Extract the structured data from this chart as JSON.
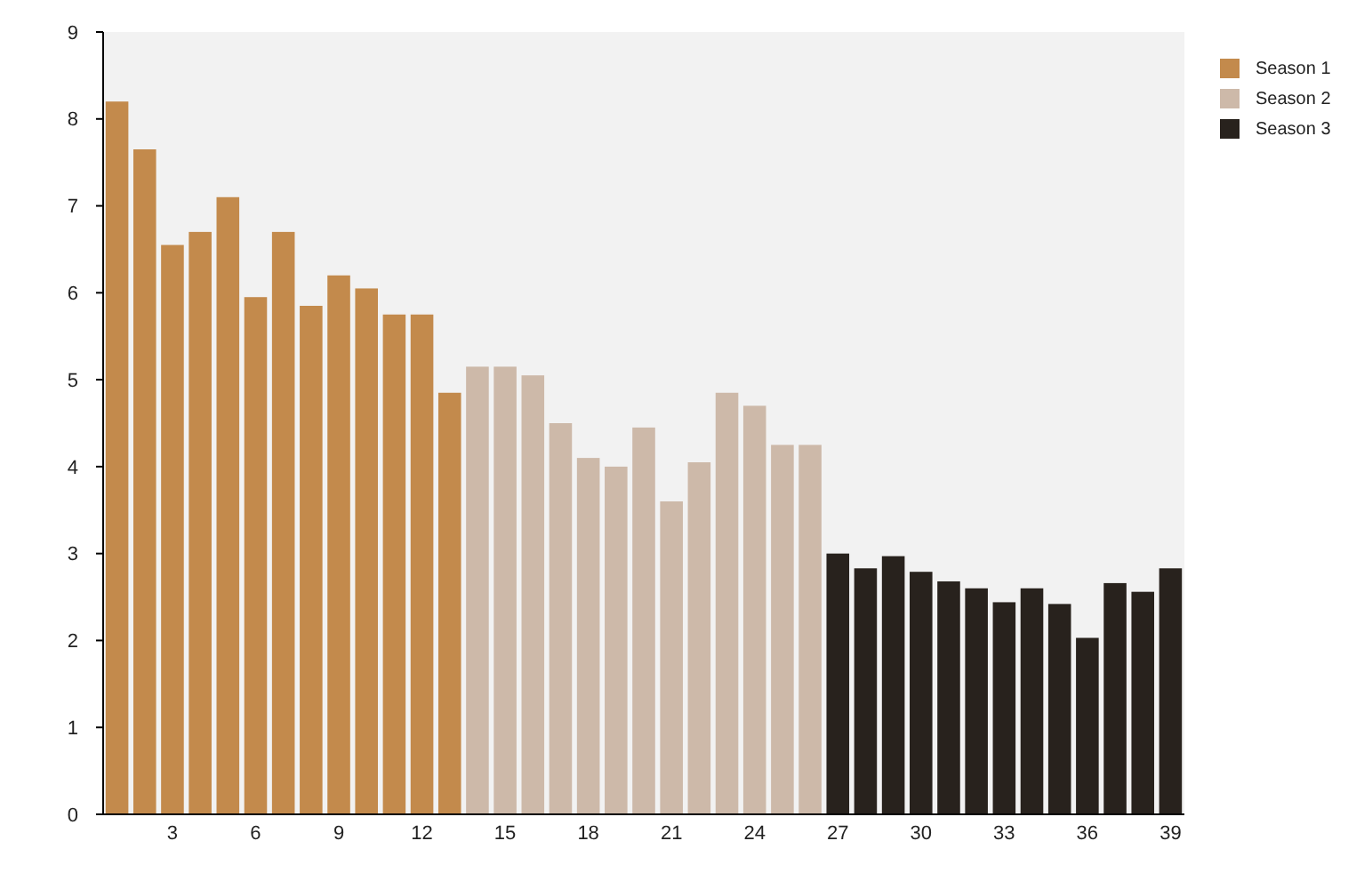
{
  "chart_data": {
    "type": "bar",
    "xlim": [
      0.5,
      39.5
    ],
    "xticks": [
      3,
      6,
      9,
      12,
      15,
      18,
      21,
      24,
      27,
      30,
      33,
      36,
      39
    ],
    "ylim": [
      0,
      9
    ],
    "yticks": [
      0,
      1,
      2,
      3,
      4,
      5,
      6,
      7,
      8,
      9
    ],
    "legend": "top right",
    "grid": false,
    "series": [
      {
        "name": "Season 1",
        "color": "#c38a4c",
        "x": [
          1,
          2,
          3,
          4,
          5,
          6,
          7,
          8,
          9,
          10,
          11,
          12,
          13
        ],
        "values": [
          8.2,
          7.65,
          6.55,
          6.7,
          7.1,
          5.95,
          6.7,
          5.85,
          6.2,
          6.05,
          5.75,
          5.75,
          4.85
        ]
      },
      {
        "name": "Season 2",
        "color": "#cdb9a9",
        "x": [
          14,
          15,
          16,
          17,
          18,
          19,
          20,
          21,
          22,
          23,
          24,
          25,
          26
        ],
        "values": [
          5.15,
          5.15,
          5.05,
          4.5,
          4.1,
          4.0,
          4.45,
          3.6,
          4.05,
          4.85,
          4.7,
          4.25,
          4.25
        ]
      },
      {
        "name": "Season 3",
        "color": "#28221d",
        "x": [
          27,
          28,
          29,
          30,
          31,
          32,
          33,
          34,
          35,
          36,
          37,
          38,
          39
        ],
        "values": [
          3.0,
          2.83,
          2.97,
          2.79,
          2.68,
          2.6,
          2.44,
          2.6,
          2.42,
          2.03,
          2.66,
          2.56,
          2.83
        ]
      }
    ]
  }
}
